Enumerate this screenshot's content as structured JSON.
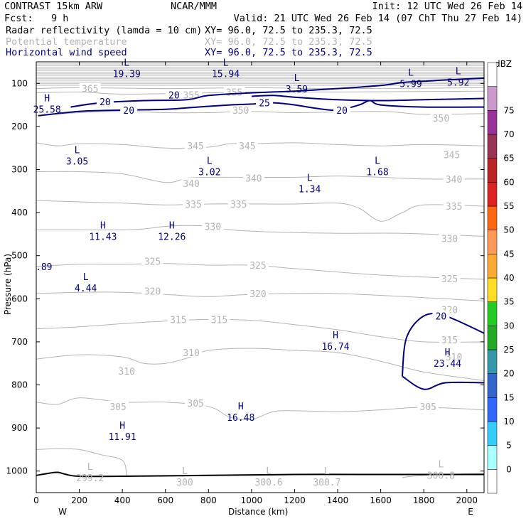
{
  "header": {
    "model": "CONTRAST 15km ARW",
    "center": "NCAR/MMM",
    "init": "Init: 12 UTC Wed 26 Feb 14",
    "fcst_label": "Fcst:",
    "fcst_value": "9 h",
    "valid": "Valid: 21 UTC Wed 26 Feb 14 (07 ChT Thu 27 Feb 14)"
  },
  "fields": [
    {
      "name": "Radar reflectivity (lamda = 10 cm)",
      "xy": "XY=  96.0, 72.5 to 235.3, 72.5",
      "color": "#000000"
    },
    {
      "name": "Potential temperature",
      "xy": "XY=  96.0, 72.5 to 235.3, 72.5",
      "color": "#b4b4b4"
    },
    {
      "name": "Horizontal wind speed",
      "xy": "XY=  96.0, 72.5 to 235.3, 72.5",
      "color": "#000080"
    }
  ],
  "chart_data": {
    "type": "cross-section contour",
    "xlabel": "Distance (km)",
    "ylabel": "Pressure (hPa)",
    "xlim": [
      0,
      2080
    ],
    "ylim": [
      1050,
      50
    ],
    "x_ticks": [
      0,
      200,
      400,
      600,
      800,
      1000,
      1200,
      1400,
      1600,
      1800,
      2000
    ],
    "y_ticks": [
      100,
      200,
      300,
      400,
      500,
      600,
      700,
      800,
      900,
      1000
    ],
    "x_end_labels": {
      "left": "W",
      "right": "E"
    },
    "theta_contours": [
      {
        "value": 365,
        "points": [
          [
            0,
            112
          ],
          [
            200,
            110
          ],
          [
            600,
            112
          ],
          [
            1000,
            110
          ],
          [
            1400,
            112
          ],
          [
            2080,
            110
          ]
        ],
        "labels": [
          [
            250,
            112
          ]
        ]
      },
      {
        "value": 355,
        "points": [
          [
            0,
            122
          ],
          [
            200,
            120
          ],
          [
            400,
            125
          ],
          [
            800,
            122
          ],
          [
            1000,
            120
          ],
          [
            1400,
            120
          ],
          [
            2080,
            118
          ]
        ],
        "labels": [
          [
            720,
            127
          ],
          [
            920,
            120
          ]
        ]
      },
      {
        "value": 350,
        "points": [
          [
            0,
            175
          ],
          [
            200,
            168
          ],
          [
            400,
            165
          ],
          [
            600,
            168
          ],
          [
            800,
            168
          ],
          [
            1000,
            165
          ],
          [
            1200,
            168
          ],
          [
            1600,
            165
          ],
          [
            1800,
            172
          ],
          [
            2080,
            170
          ]
        ],
        "labels": [
          [
            950,
            162
          ],
          [
            1880,
            180
          ]
        ]
      },
      {
        "value": 345,
        "points": [
          [
            0,
            238
          ],
          [
            100,
            245
          ],
          [
            200,
            240
          ],
          [
            400,
            242
          ],
          [
            600,
            250
          ],
          [
            800,
            248
          ],
          [
            900,
            240
          ],
          [
            1000,
            240
          ],
          [
            1200,
            238
          ],
          [
            1400,
            242
          ],
          [
            1600,
            245
          ],
          [
            1800,
            242
          ],
          [
            2080,
            245
          ]
        ],
        "labels": [
          [
            740,
            245
          ],
          [
            980,
            245
          ],
          [
            1930,
            265
          ]
        ]
      },
      {
        "value": 340,
        "points": [
          [
            0,
            305
          ],
          [
            200,
            305
          ],
          [
            400,
            310
          ],
          [
            600,
            330
          ],
          [
            700,
            320
          ],
          [
            800,
            318
          ],
          [
            1000,
            318
          ],
          [
            1200,
            318
          ],
          [
            1400,
            315
          ],
          [
            1600,
            318
          ],
          [
            1800,
            322
          ],
          [
            2080,
            322
          ]
        ],
        "labels": [
          [
            720,
            332
          ],
          [
            1010,
            320
          ],
          [
            1940,
            322
          ]
        ]
      },
      {
        "value": 335,
        "points": [
          [
            0,
            372
          ],
          [
            200,
            375
          ],
          [
            400,
            378
          ],
          [
            600,
            382
          ],
          [
            800,
            380
          ],
          [
            1000,
            380
          ],
          [
            1200,
            380
          ],
          [
            1400,
            378
          ],
          [
            1500,
            390
          ],
          [
            1600,
            420
          ],
          [
            1700,
            400
          ],
          [
            1800,
            382
          ],
          [
            2080,
            385
          ]
        ],
        "labels": [
          [
            730,
            380
          ],
          [
            940,
            380
          ],
          [
            1940,
            385
          ]
        ]
      },
      {
        "value": 330,
        "points": [
          [
            0,
            440
          ],
          [
            200,
            440
          ],
          [
            400,
            440
          ],
          [
            500,
            438
          ],
          [
            600,
            432
          ],
          [
            700,
            430
          ],
          [
            800,
            432
          ],
          [
            900,
            440
          ],
          [
            1100,
            445
          ],
          [
            1400,
            448
          ],
          [
            1700,
            448
          ],
          [
            2080,
            455
          ]
        ],
        "labels": [
          [
            820,
            432
          ],
          [
            1920,
            460
          ]
        ]
      },
      {
        "value": 325,
        "points": [
          [
            0,
            525
          ],
          [
            200,
            520
          ],
          [
            400,
            520
          ],
          [
            600,
            518
          ],
          [
            800,
            522
          ],
          [
            1000,
            522
          ],
          [
            1200,
            530
          ],
          [
            1600,
            545
          ],
          [
            2080,
            555
          ]
        ],
        "labels": [
          [
            540,
            513
          ],
          [
            1030,
            522
          ],
          [
            1920,
            553
          ]
        ]
      },
      {
        "value": 320,
        "points": [
          [
            0,
            588
          ],
          [
            200,
            585
          ],
          [
            400,
            585
          ],
          [
            600,
            590
          ],
          [
            800,
            595
          ],
          [
            1000,
            590
          ],
          [
            1400,
            588
          ],
          [
            2080,
            605
          ]
        ],
        "labels": [
          [
            540,
            582
          ],
          [
            1030,
            588
          ],
          [
            1920,
            625
          ]
        ]
      },
      {
        "value": 315,
        "points": [
          [
            0,
            670
          ],
          [
            200,
            665
          ],
          [
            400,
            658
          ],
          [
            600,
            652
          ],
          [
            800,
            648
          ],
          [
            1000,
            650
          ],
          [
            1200,
            660
          ],
          [
            1400,
            672
          ],
          [
            1600,
            688
          ],
          [
            1800,
            700
          ],
          [
            2080,
            700
          ]
        ],
        "labels": [
          [
            660,
            648
          ],
          [
            850,
            648
          ],
          [
            1920,
            695
          ]
        ]
      },
      {
        "value": 310,
        "points": [
          [
            0,
            740
          ],
          [
            200,
            730
          ],
          [
            400,
            735
          ],
          [
            500,
            750
          ],
          [
            600,
            750
          ],
          [
            700,
            738
          ],
          [
            800,
            720
          ],
          [
            1000,
            715
          ],
          [
            1200,
            720
          ],
          [
            1400,
            725
          ],
          [
            1600,
            745
          ],
          [
            1800,
            770
          ],
          [
            2080,
            790
          ]
        ],
        "labels": [
          [
            420,
            768
          ],
          [
            720,
            725
          ],
          [
            1940,
            735
          ]
        ]
      },
      {
        "value": 305,
        "points": [
          [
            0,
            840
          ],
          [
            100,
            845
          ],
          [
            200,
            830
          ],
          [
            400,
            840
          ],
          [
            600,
            840
          ],
          [
            800,
            850
          ],
          [
            900,
            875
          ],
          [
            1000,
            880
          ],
          [
            1100,
            862
          ],
          [
            1200,
            860
          ],
          [
            1400,
            862
          ],
          [
            1600,
            858
          ],
          [
            1800,
            852
          ],
          [
            2080,
            858
          ]
        ],
        "labels": [
          [
            380,
            850
          ],
          [
            740,
            842
          ],
          [
            1820,
            850
          ]
        ]
      }
    ],
    "surface_contours": [
      {
        "value": 300.8,
        "points": [
          [
            0,
            950
          ],
          [
            100,
            948
          ],
          [
            200,
            950
          ],
          [
            300,
            962
          ],
          [
            400,
            975
          ],
          [
            420,
            1010
          ]
        ]
      },
      {
        "value": 300.8,
        "points": [
          [
            1700,
            1015
          ],
          [
            1800,
            1010
          ],
          [
            2080,
            1005
          ]
        ]
      }
    ],
    "wind_contours": [
      {
        "value": 20,
        "points": [
          [
            160,
            155
          ],
          [
            300,
            145
          ],
          [
            500,
            140
          ],
          [
            700,
            138
          ],
          [
            800,
            128
          ],
          [
            1000,
            122
          ],
          [
            1200,
            118
          ],
          [
            1400,
            112
          ],
          [
            1600,
            105
          ],
          [
            1700,
            98
          ],
          [
            1800,
            95
          ],
          [
            1900,
            92
          ],
          [
            2080,
            88
          ]
        ],
        "labels": [
          [
            320,
            142
          ],
          [
            640,
            127
          ]
        ]
      },
      {
        "value": 20,
        "points": [
          [
            10,
            175
          ],
          [
            200,
            165
          ],
          [
            400,
            162
          ],
          [
            600,
            160
          ],
          [
            750,
            155
          ],
          [
            900,
            150
          ],
          [
            1000,
            148
          ],
          [
            1100,
            145
          ],
          [
            1200,
            150
          ],
          [
            1300,
            158
          ],
          [
            1400,
            162
          ],
          [
            1500,
            150
          ],
          [
            1550,
            140
          ],
          [
            1600,
            150
          ],
          [
            1800,
            155
          ],
          [
            2080,
            155
          ]
        ],
        "labels": [
          [
            430,
            162
          ],
          [
            1420,
            162
          ]
        ]
      },
      {
        "value": 25,
        "points": [
          [
            1000,
            130
          ],
          [
            1100,
            128
          ],
          [
            1200,
            132
          ],
          [
            1400,
            138
          ],
          [
            1600,
            140
          ],
          [
            1800,
            138
          ],
          [
            2080,
            135
          ]
        ],
        "labels": [
          [
            1060,
            145
          ]
        ]
      },
      {
        "value": 20,
        "points": [
          [
            1700,
            780
          ],
          [
            1720,
            690
          ],
          [
            1800,
            640
          ],
          [
            1900,
            640
          ],
          [
            2080,
            680
          ]
        ],
        "labels": [
          [
            1880,
            640
          ]
        ]
      },
      {
        "value": 20,
        "points": [
          [
            1700,
            780
          ],
          [
            1800,
            810
          ],
          [
            1900,
            795
          ],
          [
            2080,
            795
          ]
        ]
      }
    ],
    "wind_reflectivity_curve": {
      "points": [
        [
          0,
          1010
        ],
        [
          60,
          1005
        ],
        [
          100,
          1003
        ],
        [
          140,
          1008
        ],
        [
          200,
          1012
        ],
        [
          400,
          1012
        ],
        [
          800,
          1010
        ],
        [
          1200,
          1008
        ],
        [
          1600,
          1008
        ],
        [
          2080,
          1008
        ]
      ]
    },
    "extrema": [
      {
        "type": "H",
        "value": "25.58",
        "x": 50,
        "p": 155,
        "field": "wind"
      },
      {
        "type": "L",
        "value": "19.39",
        "x": 420,
        "p": 72,
        "field": "wind"
      },
      {
        "type": "L",
        "value": "15.94",
        "x": 880,
        "p": 72,
        "field": "wind"
      },
      {
        "type": "L",
        "value": "3.59",
        "x": 1210,
        "p": 108,
        "field": "wind"
      },
      {
        "type": "L",
        "value": "5.99",
        "x": 1740,
        "p": 95,
        "field": "wind"
      },
      {
        "type": "L",
        "value": "5.92",
        "x": 1960,
        "p": 92,
        "field": "wind"
      },
      {
        "type": "L",
        "value": "3.05",
        "x": 190,
        "p": 275,
        "field": "wind"
      },
      {
        "type": "L",
        "value": "3.02",
        "x": 805,
        "p": 300,
        "field": "wind"
      },
      {
        "type": "L",
        "value": "1.34",
        "x": 1270,
        "p": 340,
        "field": "wind"
      },
      {
        "type": "L",
        "value": "1.68",
        "x": 1585,
        "p": 300,
        "field": "wind"
      },
      {
        "type": "H",
        "value": "11.43",
        "x": 310,
        "p": 450,
        "field": "wind"
      },
      {
        "type": "H",
        "value": "12.26",
        "x": 630,
        "p": 450,
        "field": "wind"
      },
      {
        "type": "L",
        "value": "4.44",
        "x": 230,
        "p": 570,
        "field": "wind"
      },
      {
        "type": "H",
        "value": "16.74",
        "x": 1390,
        "p": 705,
        "field": "wind"
      },
      {
        "type": "H",
        "value": "23.44",
        "x": 1910,
        "p": 745,
        "field": "wind"
      },
      {
        "type": "H",
        "value": "16.48",
        "x": 950,
        "p": 870,
        "field": "wind"
      },
      {
        "type": "H",
        "value": "11.91",
        "x": 400,
        "p": 915,
        "field": "wind"
      },
      {
        "type": "L",
        "value": "299.2",
        "x": 250,
        "p": 1010,
        "field": "theta"
      },
      {
        "type": "L",
        "value": "300",
        "x": 690,
        "p": 1020,
        "field": "theta"
      },
      {
        "type": "L",
        "value": "300.6",
        "x": 1080,
        "p": 1020,
        "field": "theta"
      },
      {
        "type": "L",
        "value": "300.7",
        "x": 1350,
        "p": 1020,
        "field": "theta"
      },
      {
        "type": "L",
        "value": "300.8",
        "x": 1880,
        "p": 1005,
        "field": "theta"
      }
    ],
    "edge_label": ".89",
    "colorbar": {
      "unit": "dBZ",
      "levels": [
        0,
        5,
        10,
        15,
        20,
        25,
        30,
        35,
        40,
        45,
        50,
        55,
        60,
        65,
        70,
        75
      ],
      "colors": [
        "#ffffff",
        "#aaffff",
        "#33ccff",
        "#3366ff",
        "#3366cc",
        "#3399aa",
        "#22aa22",
        "#22cc22",
        "#ffdd22",
        "#ffaa33",
        "#ff9955",
        "#ff6611",
        "#dd2222",
        "#bb2222",
        "#993355",
        "#993399",
        "#cc99cc",
        "#ffffff"
      ]
    }
  }
}
